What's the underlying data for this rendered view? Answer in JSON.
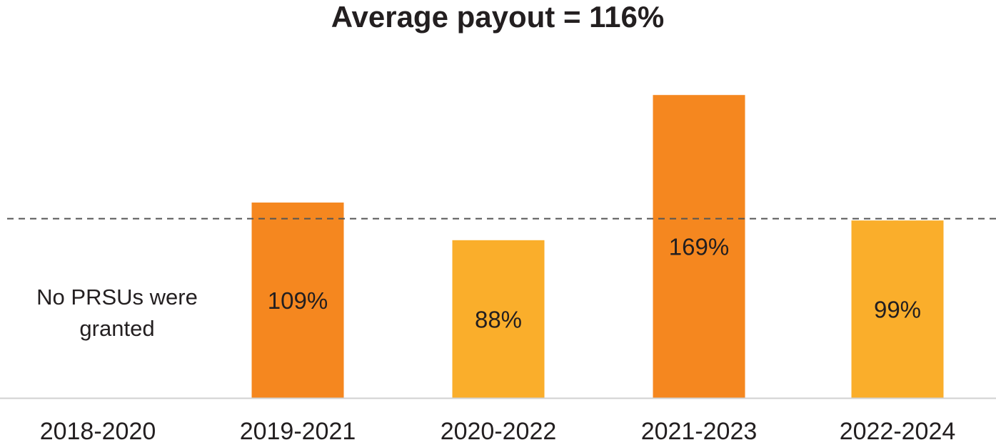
{
  "chart_data": {
    "type": "bar",
    "title": "Average payout = 116%",
    "categories": [
      "2018-2020",
      "2019-2021",
      "2020-2022",
      "2021-2023",
      "2022-2024"
    ],
    "values": [
      null,
      109,
      88,
      169,
      99
    ],
    "value_labels": [
      "",
      "109%",
      "88%",
      "169%",
      "99%"
    ],
    "missing_note": [
      "No PRSUs were",
      "granted"
    ],
    "reference_line": {
      "value": 100,
      "style": "dashed"
    },
    "ylim": [
      0,
      185
    ],
    "grid": false,
    "legend": "none",
    "xlabel": "",
    "ylabel": ""
  },
  "colors": {
    "bar_dark": "#f5871f",
    "bar_light": "#faae2b",
    "text": "#231f20",
    "reference_line": "#555555",
    "baseline": "#d0d0d0"
  },
  "bar_color_keys": [
    "bar_dark",
    "bar_dark",
    "bar_light",
    "bar_dark",
    "bar_light"
  ]
}
